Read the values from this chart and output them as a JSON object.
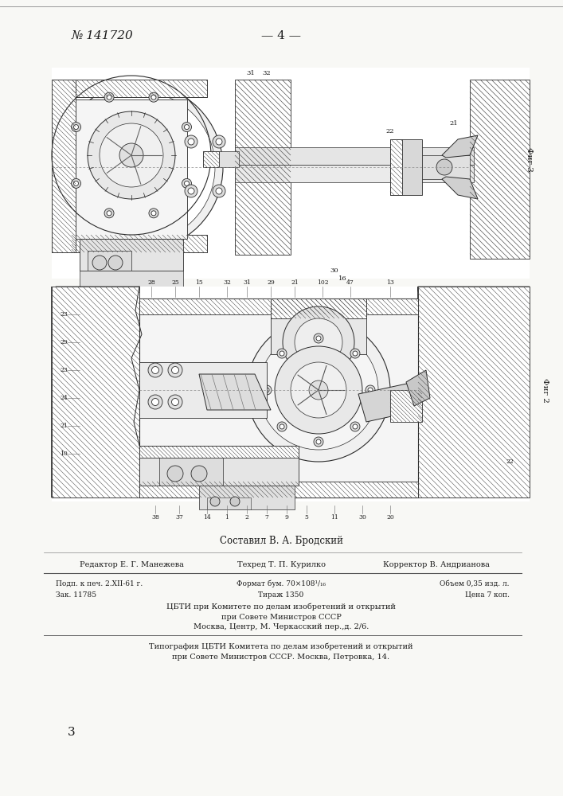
{
  "page_number": "№ 141720",
  "page_marker": "— 4 —",
  "background_color": "#f8f8f5",
  "text_color": "#1a1a1a",
  "line_color": "#2a2a2a",
  "hatch_color": "#555555",
  "compiled_by": "Составил В. А. Бродский",
  "editor": "Редактор Е. Г. Манежева",
  "techred": "Техред Т. П. Курилко",
  "corrector": "Корректор В. Андрианова",
  "info_l1c1": "Подп. к печ. 2.XII-61 г.",
  "info_l1c2": "Формат бум. 70×108¹/₁₆",
  "info_l1c3": "Объем 0,35 изд. л.",
  "info_l2c1": "Зак. 11785",
  "info_l2c2": "Тираж 1350",
  "info_l2c3": "Цена 7 коп.",
  "publisher1": "ЦБТИ при Комитете по делам изобретений и открытий",
  "publisher2": "при Совете Министров СССР",
  "publisher3": "Москва, Центр, М. Черкасский пер.,д. 2/6.",
  "printer1": "Типография ЦБТИ Комитета по делам изобретений и открытий",
  "printer2": "при Совете Министров СССР. Москва, Петровка, 14.",
  "bottom_number": "3",
  "fig1_label": "Фиг 3",
  "fig2_label": "Фиг 2"
}
